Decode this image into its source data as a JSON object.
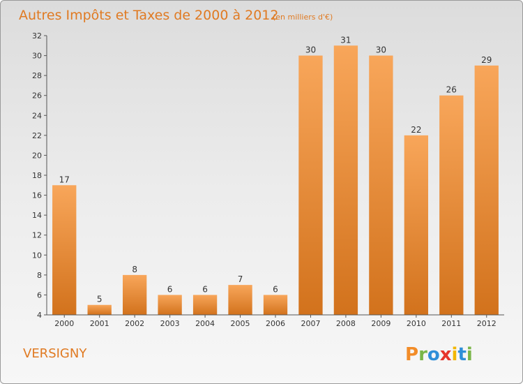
{
  "chart_data": {
    "type": "bar",
    "title": "Autres Impôts et Taxes de 2000 à 2012",
    "subtitle": "(en milliers d'€)",
    "categories": [
      "2000",
      "2001",
      "2002",
      "2003",
      "2004",
      "2005",
      "2006",
      "2007",
      "2008",
      "2009",
      "2010",
      "2011",
      "2012"
    ],
    "values": [
      17,
      5,
      8,
      6,
      6,
      7,
      6,
      30,
      31,
      30,
      22,
      26,
      29
    ],
    "ylim": [
      4,
      32
    ],
    "yticks": [
      4,
      6,
      8,
      10,
      12,
      14,
      16,
      18,
      20,
      22,
      24,
      26,
      28,
      30,
      32
    ],
    "xlabel": "",
    "ylabel": "",
    "grid": false,
    "bar_color_top": "#f8a65a",
    "bar_color_bottom": "#d2721c"
  },
  "footer": {
    "place_name": "VERSIGNY",
    "logo_text": "Proxiti",
    "logo_letters": [
      {
        "char": "P",
        "color": "#f28c28"
      },
      {
        "char": "r",
        "color": "#7ab648"
      },
      {
        "char": "o",
        "color": "#2f8fd8"
      },
      {
        "char": "x",
        "color": "#e6352b"
      },
      {
        "char": "i",
        "color": "#f2b705"
      },
      {
        "char": "t",
        "color": "#2f8fd8"
      },
      {
        "char": "i",
        "color": "#7ab648"
      }
    ]
  }
}
